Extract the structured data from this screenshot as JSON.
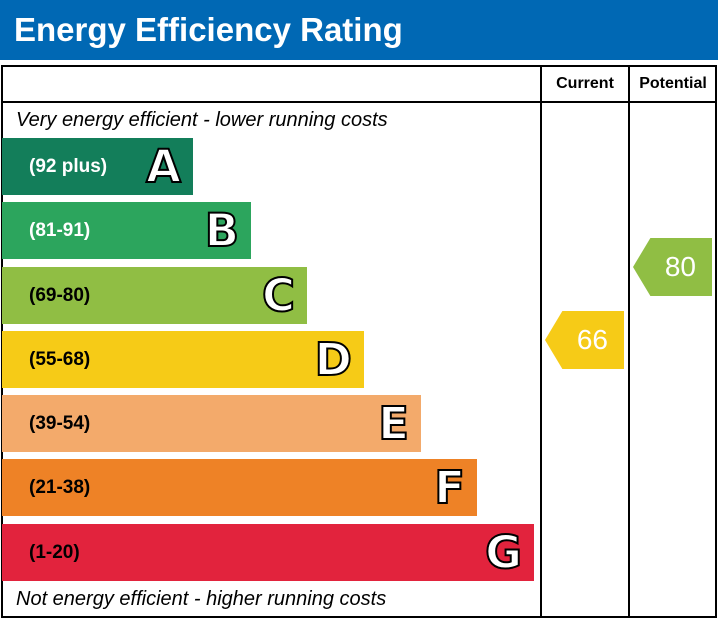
{
  "header": {
    "title": "Energy Efficiency Rating"
  },
  "columns": {
    "current": "Current",
    "potential": "Potential"
  },
  "notes": {
    "top": "Very energy efficient - lower running costs",
    "bottom": "Not energy efficient - higher running costs"
  },
  "chart_data": {
    "type": "bar",
    "title": "Energy Efficiency Rating",
    "categories": [
      "A",
      "B",
      "C",
      "D",
      "E",
      "F",
      "G"
    ],
    "ranges": [
      "(92 plus)",
      "(81-91)",
      "(69-80)",
      "(55-68)",
      "(39-54)",
      "(21-38)",
      "(1-20)"
    ],
    "colors": [
      "#137e5a",
      "#2ca55d",
      "#90be44",
      "#f6cb17",
      "#f3aa6b",
      "#ee8226",
      "#e2233d"
    ],
    "range_text_colors": [
      "#ffffff",
      "#ffffff",
      "#000000",
      "#000000",
      "#000000",
      "#000000",
      "#000000"
    ],
    "current": {
      "value": 66,
      "band": "D",
      "color": "#f6cb17"
    },
    "potential": {
      "value": 80,
      "band": "C",
      "color": "#90be44"
    }
  }
}
